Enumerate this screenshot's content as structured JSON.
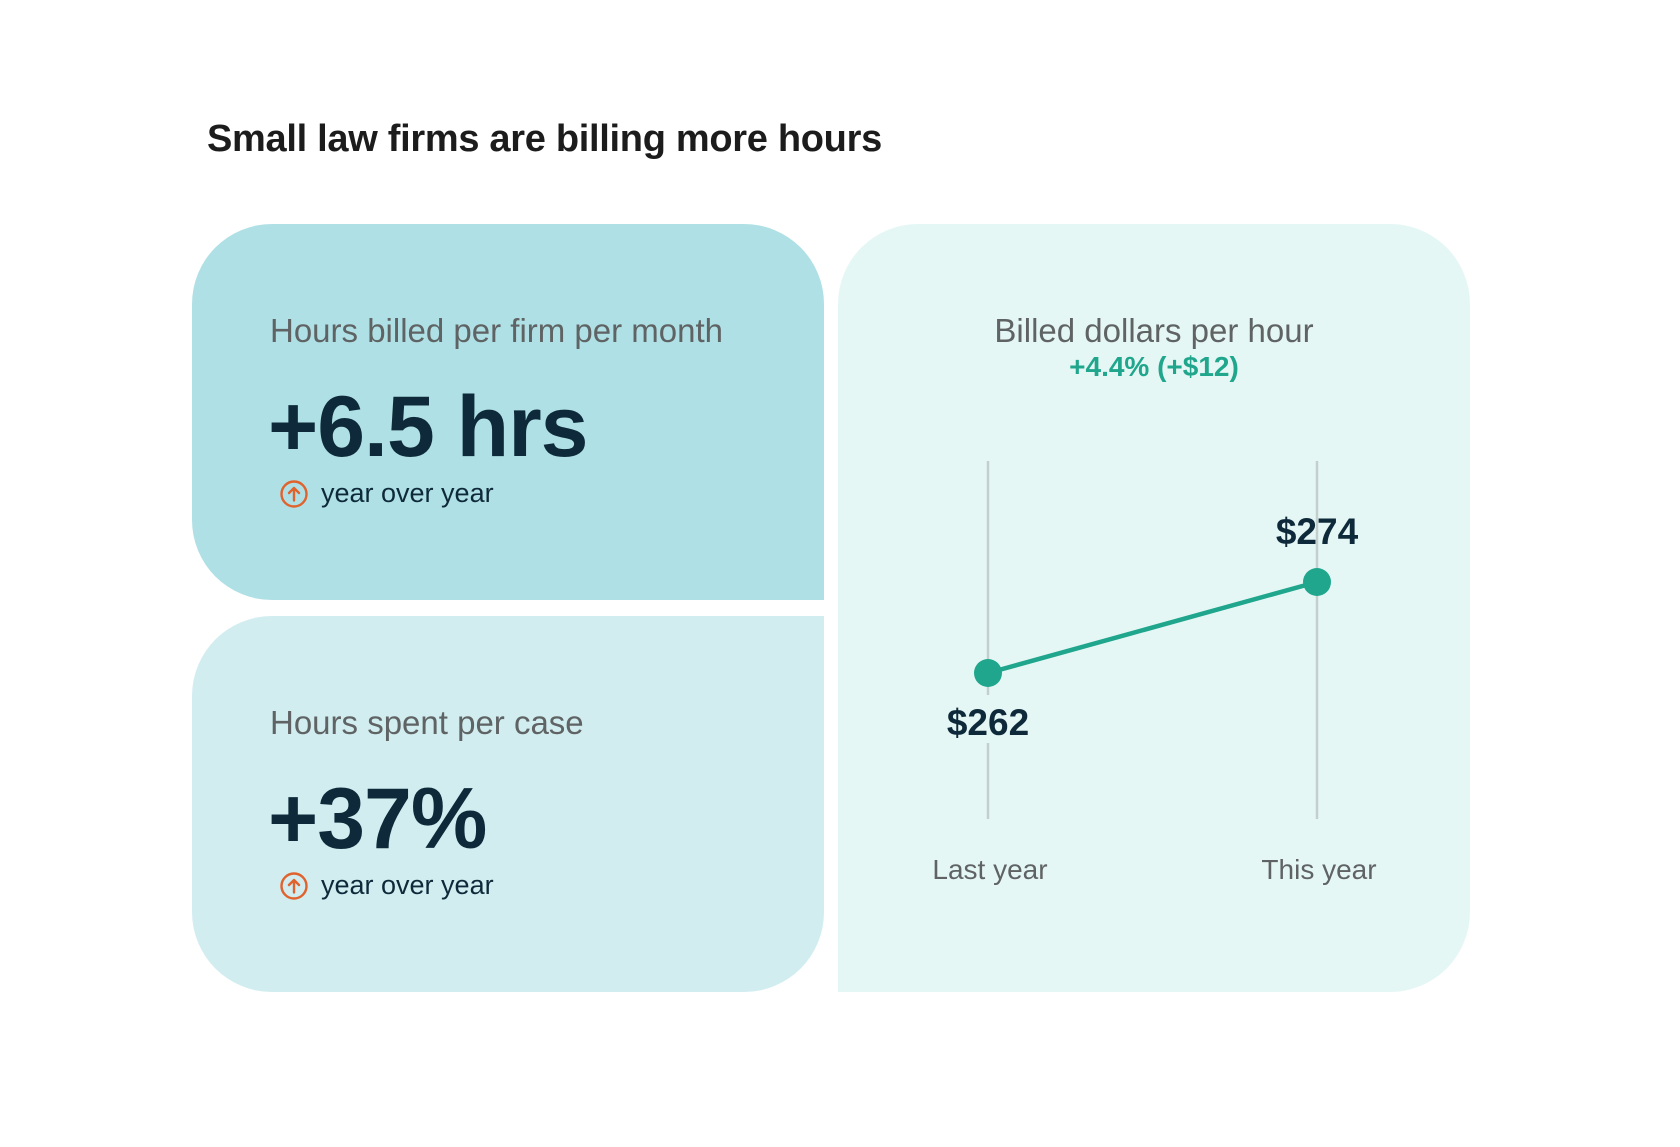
{
  "title": "Small law firms are billing more hours",
  "cards": {
    "hours_per_month": {
      "label": "Hours billed per firm per month",
      "value": "+6.5 hrs",
      "sub": "year over year",
      "icon": "arrow-up-circle-icon"
    },
    "hours_per_case": {
      "label": "Hours spent per case",
      "value": "+37%",
      "sub": "year over year",
      "icon": "arrow-up-circle-icon"
    }
  },
  "chart_data": {
    "type": "line",
    "title": "Billed dollars per hour",
    "subtitle": "+4.4% (+$12)",
    "categories": [
      "Last year",
      "This year"
    ],
    "series": [
      {
        "values": [
          262,
          274
        ],
        "data_labels": [
          "$262",
          "$274"
        ]
      }
    ],
    "grid": false
  },
  "colors": {
    "card_dark": "#afe0e5",
    "card_light": "#d1edf0",
    "card_chart": "#e5f7f5",
    "accent_green": "#1fa68c",
    "arrow_orange": "#e0632e",
    "value_navy": "#0e2a3a"
  }
}
